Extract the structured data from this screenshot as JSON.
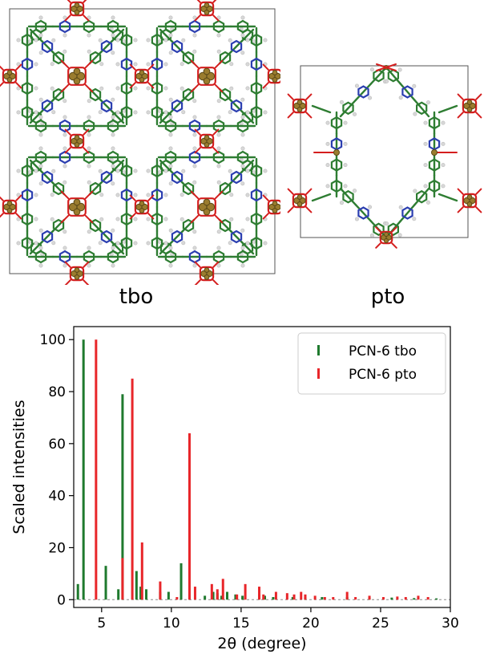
{
  "structures": [
    {
      "label": "tbo"
    },
    {
      "label": "pto"
    }
  ],
  "colors": {
    "tbo_series": "#1f7a2e",
    "pto_series": "#e8262a",
    "linker_green": "#2e7d32",
    "carboxylate_red": "#d41e1e",
    "nitrogen_blue": "#2c3fb0",
    "metal_gold": "#9a7c2e",
    "hydrogen_grey": "#d8d8d8",
    "cell_edge": "#555555"
  },
  "chart_data": {
    "type": "bar",
    "xlabel": "2θ (degree)",
    "ylabel": "Scaled intensities",
    "xlim": [
      3,
      30
    ],
    "ylim": [
      -3,
      105
    ],
    "xticks": [
      5,
      10,
      15,
      20,
      25,
      30
    ],
    "yticks": [
      0,
      20,
      40,
      60,
      80,
      100
    ],
    "legend_position": "top-right",
    "series": [
      {
        "name": "PCN-6 tbo",
        "color": "#1f7a2e",
        "points": [
          [
            3.3,
            6
          ],
          [
            3.7,
            100
          ],
          [
            5.3,
            13
          ],
          [
            6.2,
            4
          ],
          [
            6.5,
            79
          ],
          [
            7.5,
            11
          ],
          [
            7.8,
            5
          ],
          [
            8.2,
            4
          ],
          [
            9.2,
            3
          ],
          [
            9.8,
            3
          ],
          [
            10.7,
            14
          ],
          [
            11.3,
            2
          ],
          [
            12.4,
            1.5
          ],
          [
            13.0,
            3
          ],
          [
            13.3,
            2.5
          ],
          [
            13.6,
            1.5
          ],
          [
            14.0,
            3
          ],
          [
            14.6,
            2
          ],
          [
            15.1,
            1.5
          ],
          [
            16.3,
            2
          ],
          [
            16.7,
            1.5
          ],
          [
            17.3,
            1
          ],
          [
            18.7,
            1
          ],
          [
            19.6,
            1
          ],
          [
            20.8,
            1
          ],
          [
            22.6,
            1
          ],
          [
            24.2,
            0.8
          ],
          [
            25.8,
            0.8
          ],
          [
            27.4,
            0.6
          ],
          [
            29.0,
            0.5
          ]
        ]
      },
      {
        "name": "PCN-6 pto",
        "color": "#e8262a",
        "points": [
          [
            4.6,
            100
          ],
          [
            6.5,
            16
          ],
          [
            7.2,
            85
          ],
          [
            7.9,
            22
          ],
          [
            9.2,
            7
          ],
          [
            10.4,
            1
          ],
          [
            11.3,
            64
          ],
          [
            11.7,
            5
          ],
          [
            12.9,
            6
          ],
          [
            13.3,
            4
          ],
          [
            13.7,
            8
          ],
          [
            14.7,
            2
          ],
          [
            15.3,
            6
          ],
          [
            16.3,
            5
          ],
          [
            16.6,
            2
          ],
          [
            17.5,
            3
          ],
          [
            18.3,
            2.5
          ],
          [
            18.8,
            2
          ],
          [
            19.3,
            3
          ],
          [
            19.6,
            2
          ],
          [
            20.3,
            1.5
          ],
          [
            21.0,
            1
          ],
          [
            21.6,
            1
          ],
          [
            22.6,
            3
          ],
          [
            23.2,
            1
          ],
          [
            24.2,
            1.5
          ],
          [
            25.2,
            1
          ],
          [
            26.2,
            1.2
          ],
          [
            26.8,
            1
          ],
          [
            27.7,
            1.5
          ],
          [
            28.4,
            1
          ]
        ]
      }
    ]
  }
}
